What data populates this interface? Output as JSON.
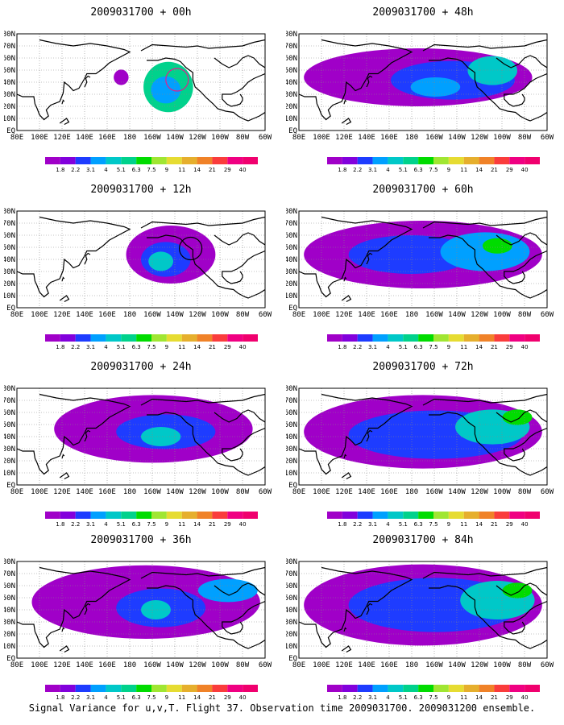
{
  "caption": "Signal Variance for u,v,T. Flight 37. Observation time 2009031700. 2009031200 ensemble.",
  "x_ticks": [
    "80E",
    "100E",
    "120E",
    "140E",
    "160E",
    "180",
    "160W",
    "140W",
    "120W",
    "100W",
    "80W",
    "60W"
  ],
  "y_ticks": [
    "EQ",
    "10N",
    "20N",
    "30N",
    "40N",
    "50N",
    "60N",
    "70N",
    "80N"
  ],
  "colorbar": {
    "labels": [
      "1.8",
      "2.2",
      "3.1",
      "4",
      "5.1",
      "6.3",
      "7.5",
      "9",
      "11",
      "14",
      "21",
      "29",
      "40"
    ],
    "colors": [
      "#a000c8",
      "#8200dc",
      "#1e3cff",
      "#00a0ff",
      "#00c8c8",
      "#00d28c",
      "#00dc00",
      "#a0e632",
      "#e6dc32",
      "#e6af2d",
      "#f08228",
      "#fa3c3c",
      "#f00082"
    ]
  },
  "chart_data": [
    {
      "type": "heatmap",
      "title": "2009031700 + 00h",
      "xlim": [
        80,
        300
      ],
      "ylim": [
        0,
        80
      ],
      "observation_circle": {
        "lon": 222,
        "lat": 42
      }
    },
    {
      "type": "heatmap",
      "title": "2009031700 + 48h",
      "xlim": [
        80,
        300
      ],
      "ylim": [
        0,
        80
      ]
    },
    {
      "type": "heatmap",
      "title": "2009031700 + 12h",
      "xlim": [
        80,
        300
      ],
      "ylim": [
        0,
        80
      ],
      "observation_circle": {
        "lon": 234,
        "lat": 49
      }
    },
    {
      "type": "heatmap",
      "title": "2009031700 + 60h",
      "xlim": [
        80,
        300
      ],
      "ylim": [
        0,
        80
      ]
    },
    {
      "type": "heatmap",
      "title": "2009031700 + 24h",
      "xlim": [
        80,
        300
      ],
      "ylim": [
        0,
        80
      ]
    },
    {
      "type": "heatmap",
      "title": "2009031700 + 72h",
      "xlim": [
        80,
        300
      ],
      "ylim": [
        0,
        80
      ]
    },
    {
      "type": "heatmap",
      "title": "2009031700 + 36h",
      "xlim": [
        80,
        300
      ],
      "ylim": [
        0,
        80
      ]
    },
    {
      "type": "heatmap",
      "title": "2009031700 + 84h",
      "xlim": [
        80,
        300
      ],
      "ylim": [
        0,
        80
      ]
    }
  ]
}
